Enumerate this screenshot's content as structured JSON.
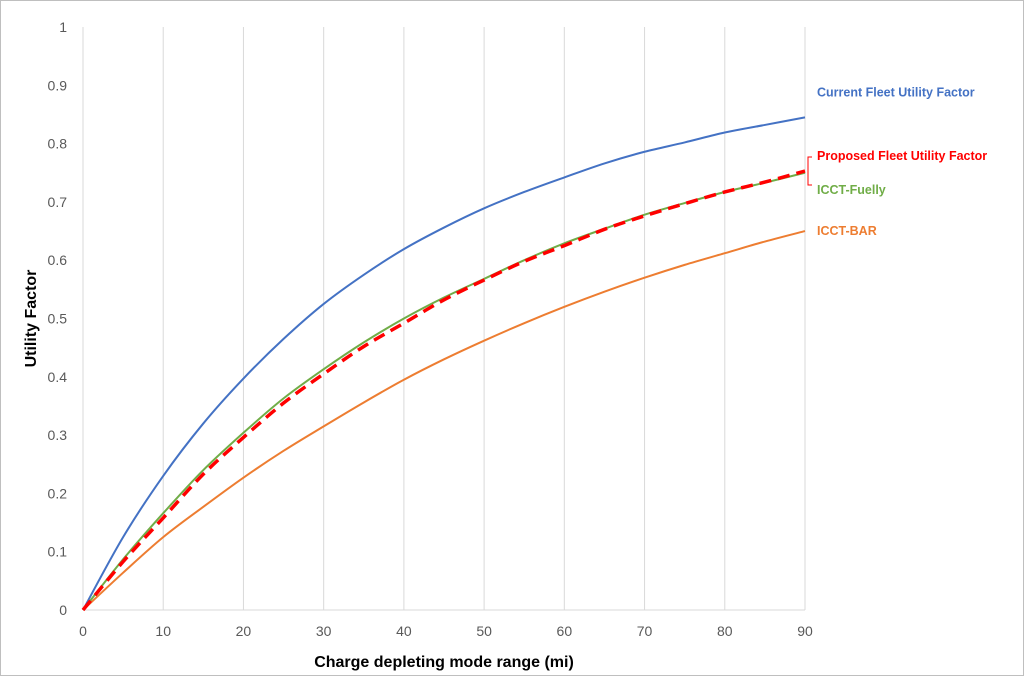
{
  "chart_data": {
    "type": "line",
    "title": "",
    "xlabel": "Charge depleting mode range (mi)",
    "ylabel": "Utility Factor",
    "xlim": [
      0,
      90
    ],
    "ylim": [
      0,
      1
    ],
    "x_ticks": [
      0,
      10,
      20,
      30,
      40,
      50,
      60,
      70,
      80,
      90
    ],
    "y_ticks": [
      0,
      0.1,
      0.2,
      0.3,
      0.4,
      0.5,
      0.6,
      0.7,
      0.8,
      0.9,
      1
    ],
    "grid": "vertical",
    "legend": "direct labels at right end of lines",
    "x": [
      0,
      5,
      10,
      15,
      20,
      25,
      30,
      35,
      40,
      45,
      50,
      55,
      60,
      65,
      70,
      75,
      80,
      85,
      90
    ],
    "series": [
      {
        "name": "Current Fleet Utility Factor",
        "color": "#4472C4",
        "style": "solid",
        "values": [
          0,
          0.125,
          0.23,
          0.32,
          0.397,
          0.465,
          0.525,
          0.575,
          0.619,
          0.656,
          0.689,
          0.717,
          0.742,
          0.766,
          0.786,
          0.802,
          0.819,
          0.832,
          0.845
        ]
      },
      {
        "name": "Proposed Fleet Utility Factor",
        "color": "#FF0000",
        "style": "dashed",
        "values": [
          0,
          0.083,
          0.158,
          0.233,
          0.296,
          0.355,
          0.405,
          0.452,
          0.492,
          0.532,
          0.566,
          0.598,
          0.625,
          0.653,
          0.676,
          0.697,
          0.717,
          0.734,
          0.753
        ]
      },
      {
        "name": "ICCT-Fuelly",
        "color": "#70AD47",
        "style": "solid",
        "values": [
          0,
          0.087,
          0.166,
          0.24,
          0.304,
          0.363,
          0.413,
          0.459,
          0.5,
          0.536,
          0.568,
          0.6,
          0.629,
          0.654,
          0.678,
          0.698,
          0.717,
          0.733,
          0.75
        ]
      },
      {
        "name": "ICCT-BAR",
        "color": "#ED7D31",
        "style": "solid",
        "values": [
          0,
          0.064,
          0.125,
          0.177,
          0.227,
          0.273,
          0.315,
          0.356,
          0.395,
          0.43,
          0.462,
          0.492,
          0.52,
          0.546,
          0.57,
          0.592,
          0.612,
          0.632,
          0.65
        ]
      }
    ]
  }
}
